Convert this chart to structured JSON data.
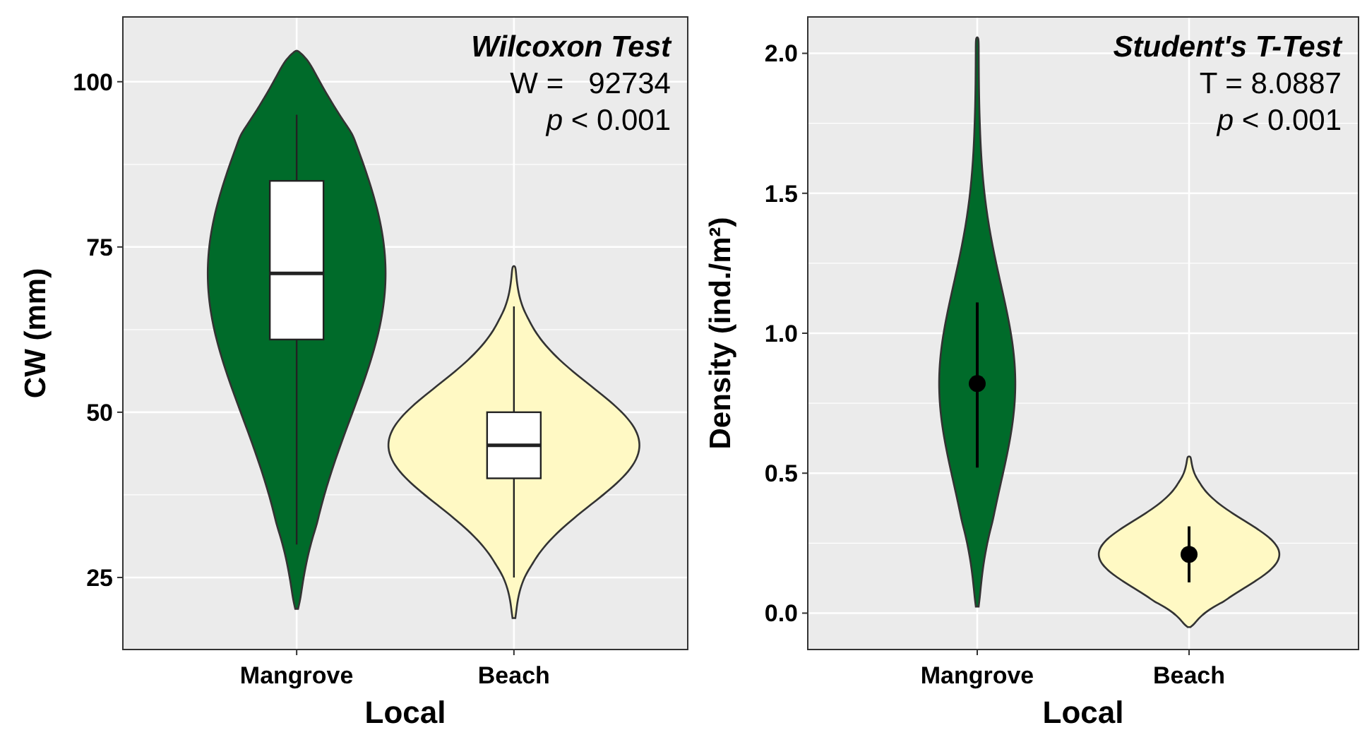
{
  "chart_data": [
    {
      "type": "box",
      "xlabel": "Local",
      "ylabel": "CW (mm)",
      "categories": [
        "Mangrove",
        "Beach"
      ],
      "colors": [
        "#ffffff",
        "#ffffff"
      ],
      "boxes": [
        {
          "low": 30,
          "q1": 61,
          "median": 71,
          "q3": 85,
          "high": 95
        },
        {
          "low": 25,
          "q1": 40,
          "median": 45,
          "q3": 50,
          "high": 66
        }
      ],
      "ylim": [
        14.1,
        109.8
      ],
      "yticks": [
        25,
        50,
        75,
        100
      ],
      "grid": true,
      "annotations": [
        "Wilcoxon Test",
        "W =   92734",
        "p < 0.001"
      ]
    },
    {
      "type": "scatter",
      "xlabel": "Local",
      "ylabel": "Density (ind./m²)",
      "categories": [
        "Mangrove",
        "Beach"
      ],
      "series": [
        {
          "color": "#000000",
          "values": [
            0.82,
            0.21
          ],
          "errors": [
            [
              0.52,
              1.11
            ],
            [
              0.11,
              0.31
            ]
          ]
        }
      ],
      "marker": "circle",
      "ylim": [
        -0.13,
        2.13
      ],
      "yticks": [
        {
          "value": 0,
          "label": "0.0"
        },
        0.5,
        {
          "value": 1,
          "label": "1.0"
        },
        1.5,
        {
          "value": 2,
          "label": "2.0"
        }
      ],
      "grid": true,
      "annotations": [
        "Student's  T-Test",
        "T = 8.0887",
        "p < 0.001"
      ]
    }
  ]
}
